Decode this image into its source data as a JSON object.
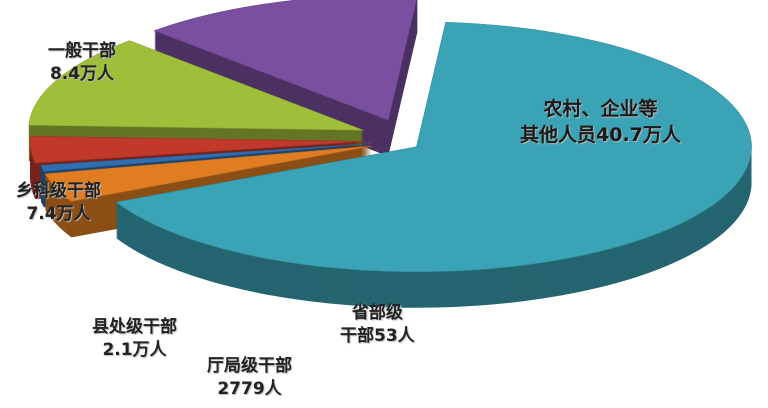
{
  "chart_data": {
    "type": "pie",
    "style": "3d-exploded",
    "unit": "万人",
    "slices": [
      {
        "name": "农村、企业等其他人员",
        "value": 40.7,
        "label_line1": "农村、企业等",
        "label_line2": "其他人员40.7万人",
        "color": "#3aa3b5"
      },
      {
        "name": "省部级干部",
        "value": 0.0053,
        "label_line1": "省部级",
        "label_line2": "干部53人",
        "color": "#e07d22"
      },
      {
        "name": "厅局级干部",
        "value": 0.2779,
        "label_line1": "厅局级干部",
        "label_line2": "2779人",
        "color": "#2f6fb0"
      },
      {
        "name": "县处级干部",
        "value": 2.1,
        "label_line1": "县处级干部",
        "label_line2": "2.1万人",
        "color": "#c0392b"
      },
      {
        "name": "乡科级干部",
        "value": 7.4,
        "label_line1": "乡科级干部",
        "label_line2": "7.4万人",
        "color": "#9fbf3b"
      },
      {
        "name": "一般干部",
        "value": 8.4,
        "label_line1": "一般干部",
        "label_line2": "8.4万人",
        "color": "#7a4fa0"
      }
    ]
  }
}
